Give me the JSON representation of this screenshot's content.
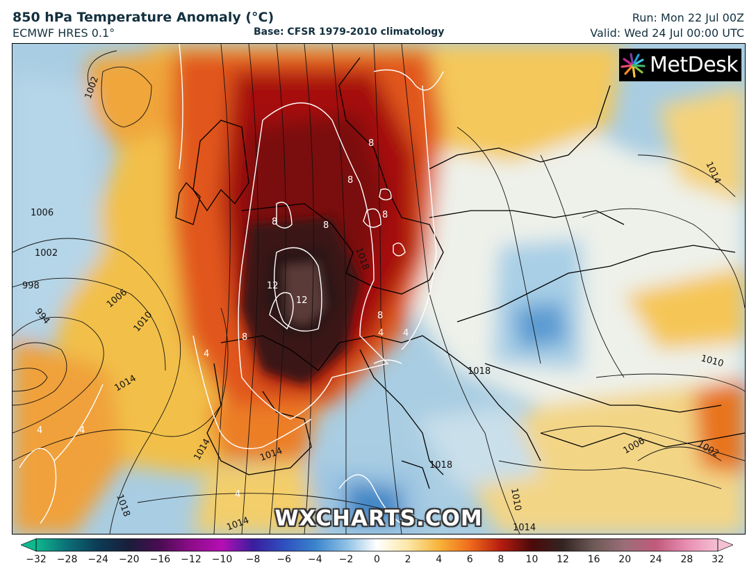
{
  "header": {
    "title": "850 hPa Temperature Anomaly (°C)",
    "model": "ECMWF HRES 0.1°",
    "base": "Base: CFSR 1979-2010 climatology",
    "run": "Run: Mon 22 Jul 00Z",
    "valid": "Valid: Wed 24 Jul 00:00 UTC"
  },
  "logo": {
    "text": "MetDesk"
  },
  "watermark": "WXCHARTS.COM",
  "isobar_labels": [
    "1002",
    "1006",
    "1002",
    "998",
    "994",
    "1006",
    "1010",
    "1014",
    "1014",
    "1014",
    "1018",
    "1018",
    "1018",
    "1014",
    "1010",
    "1006",
    "1002",
    "1010",
    "1014",
    "1018",
    "1014"
  ],
  "anomaly_labels": [
    "8",
    "8",
    "8",
    "8",
    "8",
    "12",
    "12",
    "8",
    "8",
    "4",
    "4",
    "4",
    "4",
    "4",
    "4"
  ],
  "colorbar": {
    "ticks": [
      "−32",
      "−28",
      "−24",
      "−20",
      "−16",
      "−12",
      "−10",
      "−8",
      "−6",
      "−4",
      "−2",
      "0",
      "2",
      "4",
      "6",
      "8",
      "10",
      "12",
      "16",
      "20",
      "24",
      "28",
      "32"
    ],
    "colors": [
      "#0fb88f",
      "#0c6f77",
      "#0c3b55",
      "#1a1d3a",
      "#4b0c53",
      "#8e0c8a",
      "#b50fb4",
      "#3a1d9e",
      "#2f4fbf",
      "#3a83cc",
      "#8cc0e4",
      "#ffffff",
      "#fbe7a6",
      "#f8b43a",
      "#ef6b1b",
      "#b51c0f",
      "#4b0a0a",
      "#332422",
      "#6e5a57",
      "#9b6e78",
      "#c05a7c",
      "#e88eb1",
      "#f5c0d3"
    ]
  },
  "colors": {
    "warm_core": "#2a1412",
    "hot": "#8a0b0b",
    "warm": "#e1571c",
    "mild": "#f2b13b",
    "neutral": "#f6efd8",
    "cool": "#9fc6de",
    "cold": "#3f86c6"
  }
}
